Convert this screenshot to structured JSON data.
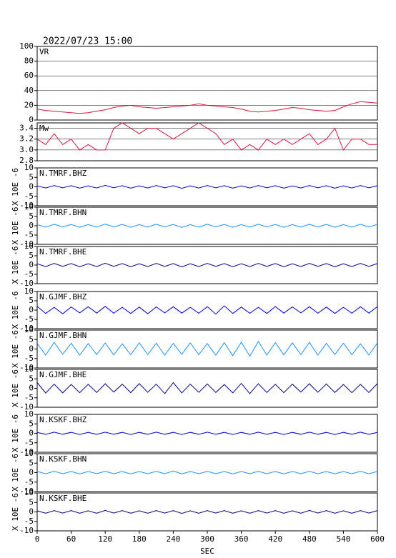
{
  "chart_data": {
    "type": "line",
    "title": "2022/07/23 15:00",
    "xlabel": "SEC",
    "x": [
      0,
      15,
      30,
      45,
      60,
      75,
      90,
      105,
      120,
      135,
      150,
      165,
      180,
      195,
      210,
      225,
      240,
      255,
      270,
      285,
      300,
      315,
      330,
      345,
      360,
      375,
      390,
      405,
      420,
      435,
      450,
      465,
      480,
      495,
      510,
      525,
      540,
      555,
      570,
      585,
      600
    ],
    "xlim": [
      0,
      600
    ],
    "xticks": [
      0,
      60,
      120,
      180,
      240,
      300,
      360,
      420,
      480,
      540,
      600
    ],
    "panels": [
      {
        "name": "VR",
        "color": "#dc143c",
        "ylim": [
          0,
          100
        ],
        "yticks": [
          0,
          20,
          40,
          60,
          80,
          100
        ],
        "grid": true,
        "values": [
          15,
          13,
          12,
          11,
          10,
          9,
          10,
          12,
          14,
          17,
          19,
          20,
          18,
          17,
          16,
          17,
          18,
          19,
          20,
          22,
          20,
          19,
          18,
          17,
          15,
          12,
          11,
          12,
          13,
          15,
          17,
          16,
          14,
          13,
          12,
          13,
          18,
          22,
          25,
          24,
          23
        ]
      },
      {
        "name": "Mw",
        "color": "#dc143c",
        "ylim": [
          2.8,
          3.5
        ],
        "yticks": [
          2.8,
          {
            "value": 3.0,
            "label": "3.0"
          },
          3.2,
          3.4
        ],
        "grid": true,
        "values": [
          3.2,
          3.1,
          3.3,
          3.1,
          3.2,
          3.0,
          3.1,
          3.0,
          3.0,
          3.4,
          3.5,
          3.4,
          3.3,
          3.4,
          3.4,
          3.3,
          3.2,
          3.3,
          3.4,
          3.5,
          3.4,
          3.3,
          3.1,
          3.2,
          3.0,
          3.1,
          3.0,
          3.2,
          3.1,
          3.2,
          3.1,
          3.2,
          3.3,
          3.1,
          3.2,
          3.4,
          3.0,
          3.2,
          3.2,
          3.1,
          3.1
        ]
      },
      {
        "name": "N.TMRF.BHZ",
        "color": "#0000e0",
        "ylabel": "X 10E -6",
        "ylim": [
          -10,
          10
        ],
        "yticks": [
          -10,
          -5,
          0,
          5,
          10
        ],
        "values": [
          0.5,
          -0.6,
          0.7,
          -0.5,
          0.6,
          -0.7,
          0.5,
          -0.6,
          0.8,
          -0.5,
          0.6,
          -0.7,
          0.5,
          -0.6,
          0.7,
          -0.5,
          0.6,
          -0.8,
          0.5,
          -0.6,
          0.7,
          -0.5,
          0.6,
          -0.7,
          0.5,
          -0.6,
          0.7,
          -0.5,
          0.6,
          -0.7,
          0.5,
          -0.6,
          0.7,
          -0.5,
          0.6,
          -0.7,
          0.5,
          -0.6,
          0.7,
          -0.5,
          0.6
        ]
      },
      {
        "name": "N.TMRF.BHN",
        "color": "#1e90ff",
        "ylabel": "X 10E -6",
        "ylim": [
          -10,
          10
        ],
        "yticks": [
          -10,
          -5,
          0,
          5,
          10
        ],
        "values": [
          0.6,
          -0.7,
          0.8,
          -0.6,
          0.7,
          -0.8,
          0.6,
          -0.7,
          0.9,
          -0.6,
          0.7,
          -0.8,
          0.6,
          -0.7,
          0.8,
          -0.6,
          0.7,
          -0.9,
          0.6,
          -0.7,
          0.8,
          -0.6,
          0.7,
          -0.8,
          0.6,
          -0.7,
          0.8,
          -0.6,
          0.7,
          -0.8,
          0.6,
          -0.7,
          0.8,
          -0.6,
          0.7,
          -0.8,
          0.6,
          -0.7,
          0.8,
          -0.6,
          0.7
        ]
      },
      {
        "name": "N.TMRF.BHE",
        "color": "#000080",
        "ylabel": "X 10E -6",
        "ylim": [
          -10,
          10
        ],
        "yticks": [
          -10,
          -5,
          0,
          5,
          10
        ],
        "values": [
          0.7,
          -0.8,
          0.9,
          -0.7,
          0.8,
          -0.9,
          0.7,
          -0.8,
          1.0,
          -0.7,
          0.8,
          -0.9,
          0.7,
          -0.8,
          0.9,
          -0.7,
          0.8,
          -1.0,
          0.7,
          -0.8,
          0.9,
          -0.7,
          0.8,
          -0.9,
          0.7,
          -0.8,
          0.9,
          -0.7,
          0.8,
          -0.9,
          0.7,
          -0.8,
          0.9,
          -0.7,
          0.8,
          -0.9,
          0.7,
          -0.8,
          0.9,
          -0.7,
          0.8
        ]
      },
      {
        "name": "N.GJMF.BHZ",
        "color": "#0000e0",
        "ylabel": "X 10E -6",
        "ylim": [
          -10,
          10
        ],
        "yticks": [
          -10,
          -5,
          0,
          5,
          10
        ],
        "values": [
          2.0,
          -1.8,
          1.5,
          -2.0,
          1.7,
          -1.5,
          1.8,
          -1.6,
          2.0,
          -1.7,
          1.5,
          -1.8,
          1.6,
          -2.0,
          1.7,
          -1.5,
          1.8,
          -1.6,
          1.5,
          -1.7,
          1.8,
          -2.2,
          2.3,
          -1.8,
          1.6,
          -1.7,
          1.5,
          -1.8,
          1.9,
          -1.6,
          1.7,
          -1.5,
          1.8,
          -1.7,
          1.6,
          -1.8,
          1.5,
          -1.7,
          1.8,
          -1.6,
          1.9
        ]
      },
      {
        "name": "N.GJMF.BHN",
        "color": "#1e90ff",
        "ylabel": "X 10E -6",
        "ylim": [
          -10,
          10
        ],
        "yticks": [
          -10,
          -5,
          0,
          5,
          10
        ],
        "values": [
          3.0,
          -3.2,
          3.5,
          -2.8,
          3.1,
          -3.3,
          2.9,
          -3.0,
          3.2,
          -3.1,
          2.8,
          -3.0,
          3.3,
          -2.9,
          3.1,
          -3.2,
          3.0,
          -2.8,
          3.2,
          -3.0,
          2.9,
          -3.3,
          3.4,
          -3.5,
          3.6,
          -3.8,
          4.0,
          -3.2,
          3.4,
          -3.1,
          3.3,
          -3.0,
          3.5,
          -3.2,
          3.0,
          -2.9,
          3.1,
          -3.0,
          2.8,
          -3.1,
          3.2
        ]
      },
      {
        "name": "N.GJMF.BHE",
        "color": "#000080",
        "ylabel": "X 10E -6",
        "ylim": [
          -10,
          10
        ],
        "yticks": [
          -10,
          -5,
          0,
          5,
          10
        ],
        "values": [
          3.0,
          -2.5,
          2.2,
          -2.4,
          2.0,
          -2.3,
          2.1,
          -2.2,
          2.4,
          -2.0,
          2.2,
          -2.3,
          2.5,
          -2.1,
          2.2,
          -2.8,
          3.0,
          -2.4,
          2.2,
          -2.1,
          2.3,
          -2.2,
          2.0,
          -2.4,
          2.6,
          -2.8,
          2.4,
          -2.2,
          2.1,
          -2.3,
          2.2,
          -2.0,
          2.4,
          -2.1,
          2.3,
          -2.2,
          2.0,
          -2.3,
          2.1,
          -2.2,
          2.5
        ]
      },
      {
        "name": "N.KSKF.BHZ",
        "color": "#0000e0",
        "ylabel": "X 10E -6",
        "ylim": [
          -10,
          10
        ],
        "yticks": [
          -10,
          -5,
          0,
          5,
          10
        ],
        "values": [
          0.5,
          -0.5,
          0.6,
          -0.5,
          0.5,
          -0.6,
          0.5,
          -0.5,
          0.6,
          -0.5,
          0.5,
          -0.6,
          0.5,
          -0.5,
          0.6,
          -0.5,
          0.5,
          -0.6,
          0.5,
          -0.5,
          0.6,
          -0.5,
          0.5,
          -0.6,
          0.5,
          -0.5,
          0.6,
          -0.5,
          0.5,
          -0.6,
          0.5,
          -0.5,
          0.6,
          -0.5,
          0.5,
          -0.6,
          0.5,
          -0.5,
          0.6,
          -0.5,
          0.5
        ]
      },
      {
        "name": "N.KSKF.BHN",
        "color": "#1e90ff",
        "ylabel": "X 10E -6",
        "ylim": [
          -10,
          10
        ],
        "yticks": [
          -10,
          -5,
          0,
          5,
          10
        ],
        "values": [
          0.6,
          -0.6,
          0.7,
          -0.6,
          0.6,
          -0.7,
          0.6,
          -0.6,
          0.7,
          -0.6,
          0.6,
          -0.7,
          0.6,
          -0.6,
          0.7,
          -0.6,
          0.9,
          -0.7,
          0.6,
          -0.6,
          0.7,
          -0.6,
          0.6,
          -0.7,
          0.6,
          -0.6,
          0.7,
          -0.6,
          0.6,
          -0.7,
          0.6,
          -0.6,
          0.7,
          -0.6,
          0.6,
          -0.7,
          0.6,
          -0.6,
          0.7,
          -0.6,
          0.6
        ]
      },
      {
        "name": "N.KSKF.BHE",
        "color": "#000080",
        "ylabel": "X 10E -6",
        "ylim": [
          -10,
          10
        ],
        "yticks": [
          -10,
          -5,
          0,
          5,
          10
        ],
        "values": [
          0.6,
          -0.7,
          0.7,
          -0.6,
          0.7,
          -0.7,
          0.6,
          -0.7,
          0.8,
          -0.6,
          0.7,
          -0.7,
          0.6,
          -0.7,
          0.7,
          -0.6,
          0.7,
          -0.8,
          0.6,
          -0.7,
          0.7,
          -0.6,
          0.7,
          -0.7,
          0.6,
          -0.7,
          0.7,
          -0.6,
          0.7,
          -0.7,
          0.6,
          -0.7,
          0.8,
          -0.6,
          0.7,
          -0.7,
          0.6,
          -0.7,
          0.7,
          -0.6,
          0.7
        ]
      }
    ]
  }
}
